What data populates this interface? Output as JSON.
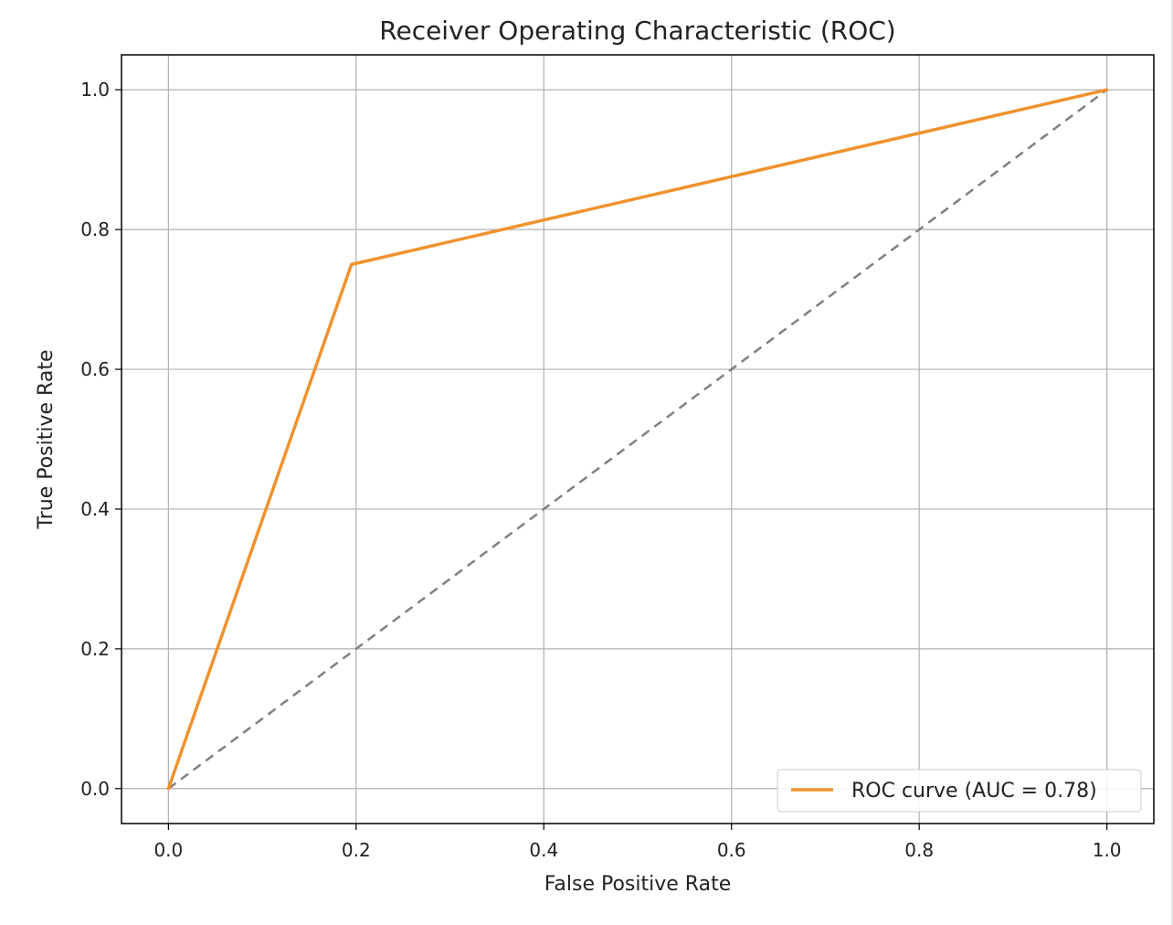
{
  "chart_data": {
    "type": "line",
    "title": "Receiver Operating Characteristic (ROC)",
    "xlabel": "False Positive Rate",
    "ylabel": "True Positive Rate",
    "xlim": [
      -0.05,
      1.05
    ],
    "ylim": [
      -0.05,
      1.05
    ],
    "grid": true,
    "legend_position": "lower-right",
    "x_ticks": [
      "0.0",
      "0.2",
      "0.4",
      "0.6",
      "0.8",
      "1.0"
    ],
    "y_ticks": [
      "0.0",
      "0.2",
      "0.4",
      "0.6",
      "0.8",
      "1.0"
    ],
    "series": [
      {
        "name": "ROC curve (AUC = 0.78)",
        "color": "#f0922e",
        "style": "solid",
        "x": [
          0.0,
          0.195,
          1.0
        ],
        "y": [
          0.0,
          0.75,
          1.0
        ]
      },
      {
        "color": "#808080",
        "style": "dashed",
        "x": [
          0.0,
          1.0
        ],
        "y": [
          0.0,
          1.0
        ]
      }
    ]
  }
}
